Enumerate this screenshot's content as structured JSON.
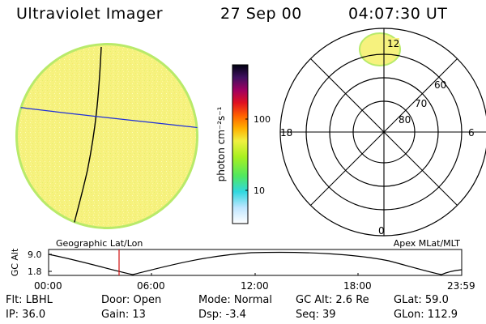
{
  "header": {
    "title": "Ultraviolet Imager",
    "date": "27 Sep 00",
    "time": "04:07:30 UT"
  },
  "colorbar": {
    "label": "photon cm⁻²s⁻¹",
    "tick_labels": [
      "100",
      "10"
    ]
  },
  "polar_plot": {
    "mlt_labels": [
      "12",
      "18",
      "6",
      "0"
    ],
    "mlat_labels": [
      "60",
      "70",
      "80"
    ]
  },
  "orbit_panel": {
    "left_label": "Geographic Lat/Lon",
    "right_label": "Apex MLat/MLT",
    "y_axis_label": "GC Alt",
    "y_ticks": [
      "9.0",
      "1.8"
    ],
    "x_ticks": [
      "00:00",
      "06:00",
      "12:00",
      "18:00",
      "23:59"
    ],
    "current_time_marker": "04:07"
  },
  "footer": {
    "row1": {
      "filter": "Flt: LBHL",
      "door": "Door: Open",
      "mode": "Mode: Normal",
      "gc_alt": "GC Alt: 2.6 Re",
      "glat": "GLat:  59.0"
    },
    "row2": {
      "ip": "IP: 36.0",
      "gain": "Gain: 13",
      "dsp": "Dsp:   -3.4",
      "seq": "Seq: 39",
      "glon": "GLon: 112.9"
    }
  },
  "colors": {
    "disk_fill": "#f4f08a",
    "disk_rim": "#b8ea6a",
    "grid_line": "#000000",
    "geo_lon_line": "#000000",
    "geo_lat_line": "#1e2fd8",
    "time_marker": "#d01010"
  }
}
